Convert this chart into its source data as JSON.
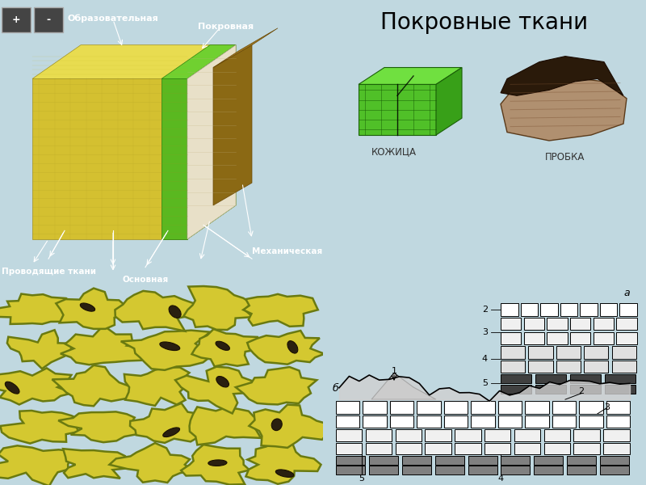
{
  "title": "Покровные ткани",
  "title_fontsize": 20,
  "label1": "Образовательная",
  "label2": "Покровная",
  "label3": "Проводящие ткани",
  "label4": "Основная",
  "label5": "Механическая",
  "label_kozitsa": "КОЖИЦА",
  "label_probka": "ПРОБКА",
  "label_a": "а",
  "label_b": "б",
  "bg_left_top": "#000000",
  "bg_left_bot": "#ffffff",
  "bg_right": "#c0d8e0",
  "bg_drawings": "#ffffff",
  "cell_fill": "#d4c830",
  "cell_edge": "#6a7a10",
  "stomata_color": "#2a2010"
}
